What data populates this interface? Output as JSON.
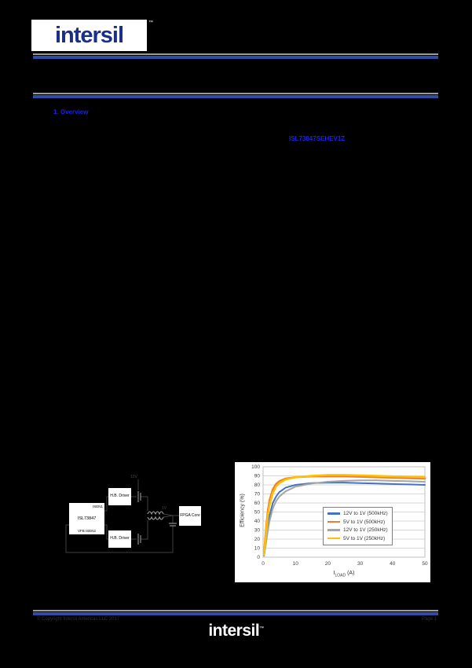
{
  "header": {
    "logo_text": "intersil",
    "trademark": "™"
  },
  "body_links": {
    "section_heading": "1. Overview",
    "inline_link": "ISL73847SEHEV1Z"
  },
  "diagram": {
    "chip_pin_top": "ISEN1",
    "chip_name": "ISL73847",
    "chip_pin_bottom": "VFB  ISEN2",
    "driver_top_label": "H.B. Driver",
    "driver_bottom_label": "H.B. Driver",
    "fpga_label": "FPGA Core",
    "net_in_label": "12V",
    "net_out_label": "1V"
  },
  "chart_data": {
    "type": "line",
    "title": "",
    "xlabel": "I_LOAD (A)",
    "xlabel_main": "I",
    "xlabel_sub": "LOAD",
    "xlabel_unit": " (A)",
    "ylabel": "Efficiency (%)",
    "xlim": [
      0,
      50
    ],
    "ylim": [
      0,
      100
    ],
    "xticks": [
      0,
      10,
      20,
      30,
      40,
      50
    ],
    "yticks": [
      0,
      10,
      20,
      30,
      40,
      50,
      60,
      70,
      80,
      90,
      100
    ],
    "grid": true,
    "legend_position": "inside-right",
    "x": [
      0.3,
      0.6,
      1,
      1.5,
      2,
      3,
      4,
      5,
      7,
      10,
      15,
      20,
      25,
      30,
      35,
      40,
      45,
      50
    ],
    "series": [
      {
        "name": "12V to 1V (500kHz)",
        "color": "#4472C4",
        "width": 2,
        "y": [
          2,
          10,
          22,
          35,
          46,
          60,
          67,
          72,
          77,
          80,
          82,
          82.5,
          82.5,
          82,
          81.5,
          81,
          80.5,
          80
        ]
      },
      {
        "name": "5V to 1V (500kHz)",
        "color": "#ED7D31",
        "width": 2.5,
        "y": [
          4,
          18,
          35,
          52,
          63,
          75,
          81,
          84,
          87,
          88.5,
          89.5,
          89.5,
          89.5,
          89,
          88.5,
          88,
          87.5,
          87
        ]
      },
      {
        "name": "12V to 1V (250kHz)",
        "color": "#A5A5A5",
        "width": 2,
        "y": [
          1.5,
          8,
          18,
          30,
          40,
          54,
          62,
          67,
          73,
          78,
          81.5,
          83.5,
          84.5,
          85,
          85,
          84.5,
          84,
          83.5
        ]
      },
      {
        "name": "5V to 1V (250kHz)",
        "color": "#FFC000",
        "width": 2.5,
        "y": [
          3,
          15,
          30,
          47,
          58,
          71,
          78,
          82,
          86,
          88.5,
          90,
          91,
          91,
          90.5,
          90,
          89.5,
          89,
          88.5
        ]
      }
    ]
  },
  "footer": {
    "left_text": "© Copyright Intersil Americas LLC 2017",
    "right_text": "Page 1",
    "logo_text": "intersil",
    "trademark": "™"
  }
}
